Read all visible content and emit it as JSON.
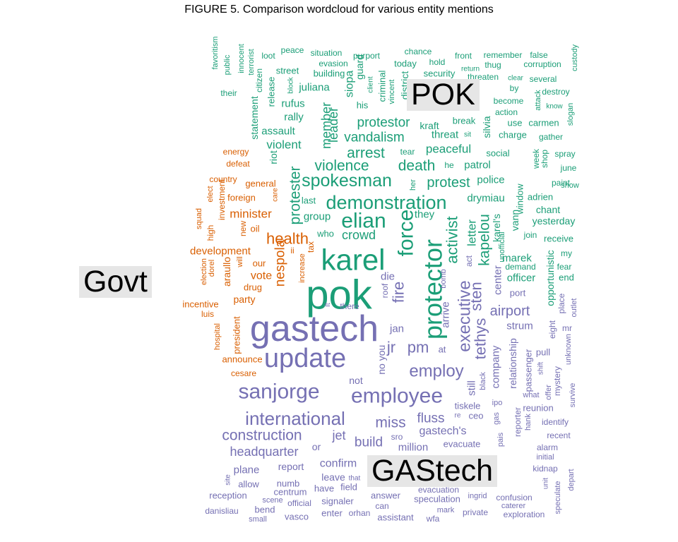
{
  "chart_data": {
    "type": "wordcloud",
    "title": "FIGURE 5. Comparison wordcloud for various entity mentions",
    "groups": [
      {
        "name": "POK",
        "color": "#1b9e77",
        "words": [
          {
            "text": "pok",
            "size": 58
          },
          {
            "text": "karel",
            "size": 42
          },
          {
            "text": "protector",
            "size": 36
          },
          {
            "text": "force",
            "size": 30
          },
          {
            "text": "demonstration",
            "size": 27
          },
          {
            "text": "spokesman",
            "size": 25
          },
          {
            "text": "elian",
            "size": 30
          },
          {
            "text": "violence",
            "size": 21
          },
          {
            "text": "arrest",
            "size": 21
          },
          {
            "text": "death",
            "size": 21
          },
          {
            "text": "protest",
            "size": 20
          },
          {
            "text": "crowd",
            "size": 18
          },
          {
            "text": "activist",
            "size": 22
          },
          {
            "text": "kapelou",
            "size": 21
          },
          {
            "text": "letter",
            "size": 17
          },
          {
            "text": "vandalism",
            "size": 19
          },
          {
            "text": "protestor",
            "size": 19
          },
          {
            "text": "member",
            "size": 18
          },
          {
            "text": "leader",
            "size": 18
          },
          {
            "text": "siopa",
            "size": 16
          },
          {
            "text": "peaceful",
            "size": 17
          },
          {
            "text": "threat",
            "size": 15
          },
          {
            "text": "patrol",
            "size": 15
          },
          {
            "text": "police",
            "size": 15
          },
          {
            "text": "drymiau",
            "size": 15
          },
          {
            "text": "karel's",
            "size": 14
          },
          {
            "text": "marek",
            "size": 15
          },
          {
            "text": "officer",
            "size": 15
          },
          {
            "text": "opportunistic",
            "size": 14
          },
          {
            "text": "protester",
            "size": 21
          },
          {
            "text": "group",
            "size": 15
          },
          {
            "text": "they",
            "size": 15
          },
          {
            "text": "violent",
            "size": 17
          },
          {
            "text": "assault",
            "size": 15
          },
          {
            "text": "rufus",
            "size": 15
          },
          {
            "text": "rally",
            "size": 15
          },
          {
            "text": "juliana",
            "size": 15
          },
          {
            "text": "statement",
            "size": 14
          },
          {
            "text": "release",
            "size": 13
          },
          {
            "text": "riot",
            "size": 14
          },
          {
            "text": "guard",
            "size": 14
          },
          {
            "text": "criminal",
            "size": 13
          },
          {
            "text": "district",
            "size": 14
          },
          {
            "text": "kraft",
            "size": 14
          },
          {
            "text": "silvia",
            "size": 14
          },
          {
            "text": "social",
            "size": 13
          },
          {
            "text": "window",
            "size": 13
          },
          {
            "text": "chant",
            "size": 14
          },
          {
            "text": "yesterday",
            "size": 14
          },
          {
            "text": "vann",
            "size": 14
          },
          {
            "text": "last",
            "size": 13
          },
          {
            "text": "who",
            "size": 13
          },
          {
            "text": "he",
            "size": 12
          },
          {
            "text": "building",
            "size": 13
          },
          {
            "text": "street",
            "size": 13
          },
          {
            "text": "his",
            "size": 13
          },
          {
            "text": "citizen",
            "size": 12
          },
          {
            "text": "security",
            "size": 13
          },
          {
            "text": "break",
            "size": 13
          },
          {
            "text": "charge",
            "size": 13
          },
          {
            "text": "carmen",
            "size": 13
          },
          {
            "text": "use",
            "size": 13
          },
          {
            "text": "action",
            "size": 12
          },
          {
            "text": "become",
            "size": 12
          },
          {
            "text": "gather",
            "size": 12
          },
          {
            "text": "spray",
            "size": 12
          },
          {
            "text": "june",
            "size": 12
          },
          {
            "text": "show",
            "size": 11
          },
          {
            "text": "paint",
            "size": 12
          },
          {
            "text": "shop",
            "size": 12
          },
          {
            "text": "week",
            "size": 12
          },
          {
            "text": "adrien",
            "size": 13
          },
          {
            "text": "join",
            "size": 12
          },
          {
            "text": "receive",
            "size": 13
          },
          {
            "text": "unofficial",
            "size": 11
          },
          {
            "text": "demand",
            "size": 12
          },
          {
            "text": "fear",
            "size": 12
          },
          {
            "text": "end",
            "size": 13
          },
          {
            "text": "my",
            "size": 12
          },
          {
            "text": "tear",
            "size": 12
          },
          {
            "text": "her",
            "size": 11
          },
          {
            "text": "peace",
            "size": 12
          },
          {
            "text": "situation",
            "size": 12
          },
          {
            "text": "purport",
            "size": 12
          },
          {
            "text": "chance",
            "size": 12
          },
          {
            "text": "front",
            "size": 12
          },
          {
            "text": "remember",
            "size": 12
          },
          {
            "text": "false",
            "size": 12
          },
          {
            "text": "loot",
            "size": 12
          },
          {
            "text": "evasion",
            "size": 12
          },
          {
            "text": "today",
            "size": 13
          },
          {
            "text": "hold",
            "size": 12
          },
          {
            "text": "thug",
            "size": 12
          },
          {
            "text": "corruption",
            "size": 12
          },
          {
            "text": "custody",
            "size": 11
          },
          {
            "text": "favoritism",
            "size": 11
          },
          {
            "text": "public",
            "size": 11
          },
          {
            "text": "innocent",
            "size": 11
          },
          {
            "text": "terrorist",
            "size": 11
          },
          {
            "text": "their",
            "size": 12
          },
          {
            "text": "vincent",
            "size": 11
          },
          {
            "text": "client",
            "size": 10
          },
          {
            "text": "return",
            "size": 10
          },
          {
            "text": "threaten",
            "size": 12
          },
          {
            "text": "clear",
            "size": 10
          },
          {
            "text": "several",
            "size": 12
          },
          {
            "text": "destroy",
            "size": 12
          },
          {
            "text": "by",
            "size": 12
          },
          {
            "text": "attack",
            "size": 11
          },
          {
            "text": "know",
            "size": 10
          },
          {
            "text": "slogan",
            "size": 11
          },
          {
            "text": "sit",
            "size": 10
          },
          {
            "text": "block",
            "size": 10
          }
        ]
      },
      {
        "name": "Govt",
        "color": "#d95f02",
        "words": [
          {
            "text": "health",
            "size": 22
          },
          {
            "text": "nespola",
            "size": 19
          },
          {
            "text": "minister",
            "size": 17
          },
          {
            "text": "development",
            "size": 15
          },
          {
            "text": "vote",
            "size": 16
          },
          {
            "text": "party",
            "size": 14
          },
          {
            "text": "araullo",
            "size": 14
          },
          {
            "text": "president",
            "size": 13
          },
          {
            "text": "announce",
            "size": 13
          },
          {
            "text": "general",
            "size": 13
          },
          {
            "text": "oil",
            "size": 13
          },
          {
            "text": "our",
            "size": 13
          },
          {
            "text": "drug",
            "size": 13
          },
          {
            "text": "incentive",
            "size": 13
          },
          {
            "text": "foreign",
            "size": 13
          },
          {
            "text": "energy",
            "size": 12
          },
          {
            "text": "defeat",
            "size": 12
          },
          {
            "text": "country",
            "size": 12
          },
          {
            "text": "elect",
            "size": 11
          },
          {
            "text": "investment",
            "size": 12
          },
          {
            "text": "new",
            "size": 12
          },
          {
            "text": "high",
            "size": 12
          },
          {
            "text": "squad",
            "size": 11
          },
          {
            "text": "election",
            "size": 11
          },
          {
            "text": "dorel",
            "size": 11
          },
          {
            "text": "will",
            "size": 11
          },
          {
            "text": "tax",
            "size": 12
          },
          {
            "text": "ii",
            "size": 12
          },
          {
            "text": "increase",
            "size": 11
          },
          {
            "text": "luis",
            "size": 12
          },
          {
            "text": "hospital",
            "size": 11
          },
          {
            "text": "cesare",
            "size": 12
          },
          {
            "text": "care",
            "size": 10
          }
        ]
      },
      {
        "name": "GAStech",
        "color": "#7570b3",
        "words": [
          {
            "text": "gastech",
            "size": 52
          },
          {
            "text": "update",
            "size": 38
          },
          {
            "text": "sanjorge",
            "size": 30
          },
          {
            "text": "employee",
            "size": 30
          },
          {
            "text": "international",
            "size": 26
          },
          {
            "text": "employ",
            "size": 24
          },
          {
            "text": "executive",
            "size": 24
          },
          {
            "text": "tethys",
            "size": 22
          },
          {
            "text": "sten",
            "size": 22
          },
          {
            "text": "jr",
            "size": 22
          },
          {
            "text": "pm",
            "size": 22
          },
          {
            "text": "fire",
            "size": 22
          },
          {
            "text": "construction",
            "size": 21
          },
          {
            "text": "miss",
            "size": 21
          },
          {
            "text": "airport",
            "size": 20
          },
          {
            "text": "build",
            "size": 19
          },
          {
            "text": "fluss",
            "size": 19
          },
          {
            "text": "headquarter",
            "size": 18
          },
          {
            "text": "jet",
            "size": 18
          },
          {
            "text": "gastech's",
            "size": 16
          },
          {
            "text": "confirm",
            "size": 16
          },
          {
            "text": "million",
            "size": 15
          },
          {
            "text": "company",
            "size": 15
          },
          {
            "text": "center",
            "size": 15
          },
          {
            "text": "strum",
            "size": 15
          },
          {
            "text": "arrive",
            "size": 15
          },
          {
            "text": "plane",
            "size": 15
          },
          {
            "text": "still",
            "size": 15
          },
          {
            "text": "jan",
            "size": 15
          },
          {
            "text": "die",
            "size": 15
          },
          {
            "text": "report",
            "size": 14
          },
          {
            "text": "leave",
            "size": 14
          },
          {
            "text": "relationship",
            "size": 14
          },
          {
            "text": "not",
            "size": 14
          },
          {
            "text": "no",
            "size": 14
          },
          {
            "text": "you",
            "size": 14
          },
          {
            "text": "or",
            "size": 14
          },
          {
            "text": "at",
            "size": 13
          },
          {
            "text": "evacuate",
            "size": 13
          },
          {
            "text": "tiskele",
            "size": 13
          },
          {
            "text": "ceo",
            "size": 13
          },
          {
            "text": "port",
            "size": 13
          },
          {
            "text": "pull",
            "size": 13
          },
          {
            "text": "passenger",
            "size": 13
          },
          {
            "text": "reunion",
            "size": 13
          },
          {
            "text": "identify",
            "size": 12
          },
          {
            "text": "recent",
            "size": 12
          },
          {
            "text": "alarm",
            "size": 12
          },
          {
            "text": "initial",
            "size": 11
          },
          {
            "text": "kidnap",
            "size": 12
          },
          {
            "text": "numb",
            "size": 13
          },
          {
            "text": "allow",
            "size": 13
          },
          {
            "text": "centrum",
            "size": 13
          },
          {
            "text": "have",
            "size": 13
          },
          {
            "text": "field",
            "size": 13
          },
          {
            "text": "reception",
            "size": 13
          },
          {
            "text": "answer",
            "size": 13
          },
          {
            "text": "evacuation",
            "size": 12
          },
          {
            "text": "speculation",
            "size": 13
          },
          {
            "text": "ingrid",
            "size": 11
          },
          {
            "text": "confusion",
            "size": 12
          },
          {
            "text": "bend",
            "size": 13
          },
          {
            "text": "official",
            "size": 12
          },
          {
            "text": "scene",
            "size": 11
          },
          {
            "text": "signaler",
            "size": 13
          },
          {
            "text": "can",
            "size": 12
          },
          {
            "text": "mark",
            "size": 11
          },
          {
            "text": "private",
            "size": 12
          },
          {
            "text": "caterer",
            "size": 11
          },
          {
            "text": "exploration",
            "size": 12
          },
          {
            "text": "danisliau",
            "size": 12
          },
          {
            "text": "vasco",
            "size": 13
          },
          {
            "text": "enter",
            "size": 13
          },
          {
            "text": "orhan",
            "size": 12
          },
          {
            "text": "assistant",
            "size": 13
          },
          {
            "text": "wfa",
            "size": 12
          },
          {
            "text": "small",
            "size": 11
          },
          {
            "text": "site",
            "size": 10
          },
          {
            "text": "that",
            "size": 10
          },
          {
            "text": "reporter",
            "size": 12
          },
          {
            "text": "hank",
            "size": 11
          },
          {
            "text": "what",
            "size": 11
          },
          {
            "text": "offer",
            "size": 11
          },
          {
            "text": "shift",
            "size": 10
          },
          {
            "text": "mystery",
            "size": 12
          },
          {
            "text": "unknown",
            "size": 11
          },
          {
            "text": "survive",
            "size": 11
          },
          {
            "text": "outlet",
            "size": 11
          },
          {
            "text": "eight",
            "size": 12
          },
          {
            "text": "place",
            "size": 12
          },
          {
            "text": "mr",
            "size": 12
          },
          {
            "text": "speculate",
            "size": 11
          },
          {
            "text": "depart",
            "size": 11
          },
          {
            "text": "unit",
            "size": 10
          },
          {
            "text": "gas",
            "size": 11
          },
          {
            "text": "ipo",
            "size": 11
          },
          {
            "text": "pais",
            "size": 11
          },
          {
            "text": "re",
            "size": 10
          },
          {
            "text": "black",
            "size": 11
          },
          {
            "text": "sro",
            "size": 12
          },
          {
            "text": "there",
            "size": 12
          },
          {
            "text": "it",
            "size": 11
          },
          {
            "text": "roof",
            "size": 12
          },
          {
            "text": "bomb",
            "size": 11
          },
          {
            "text": "act",
            "size": 12
          }
        ]
      }
    ]
  }
}
